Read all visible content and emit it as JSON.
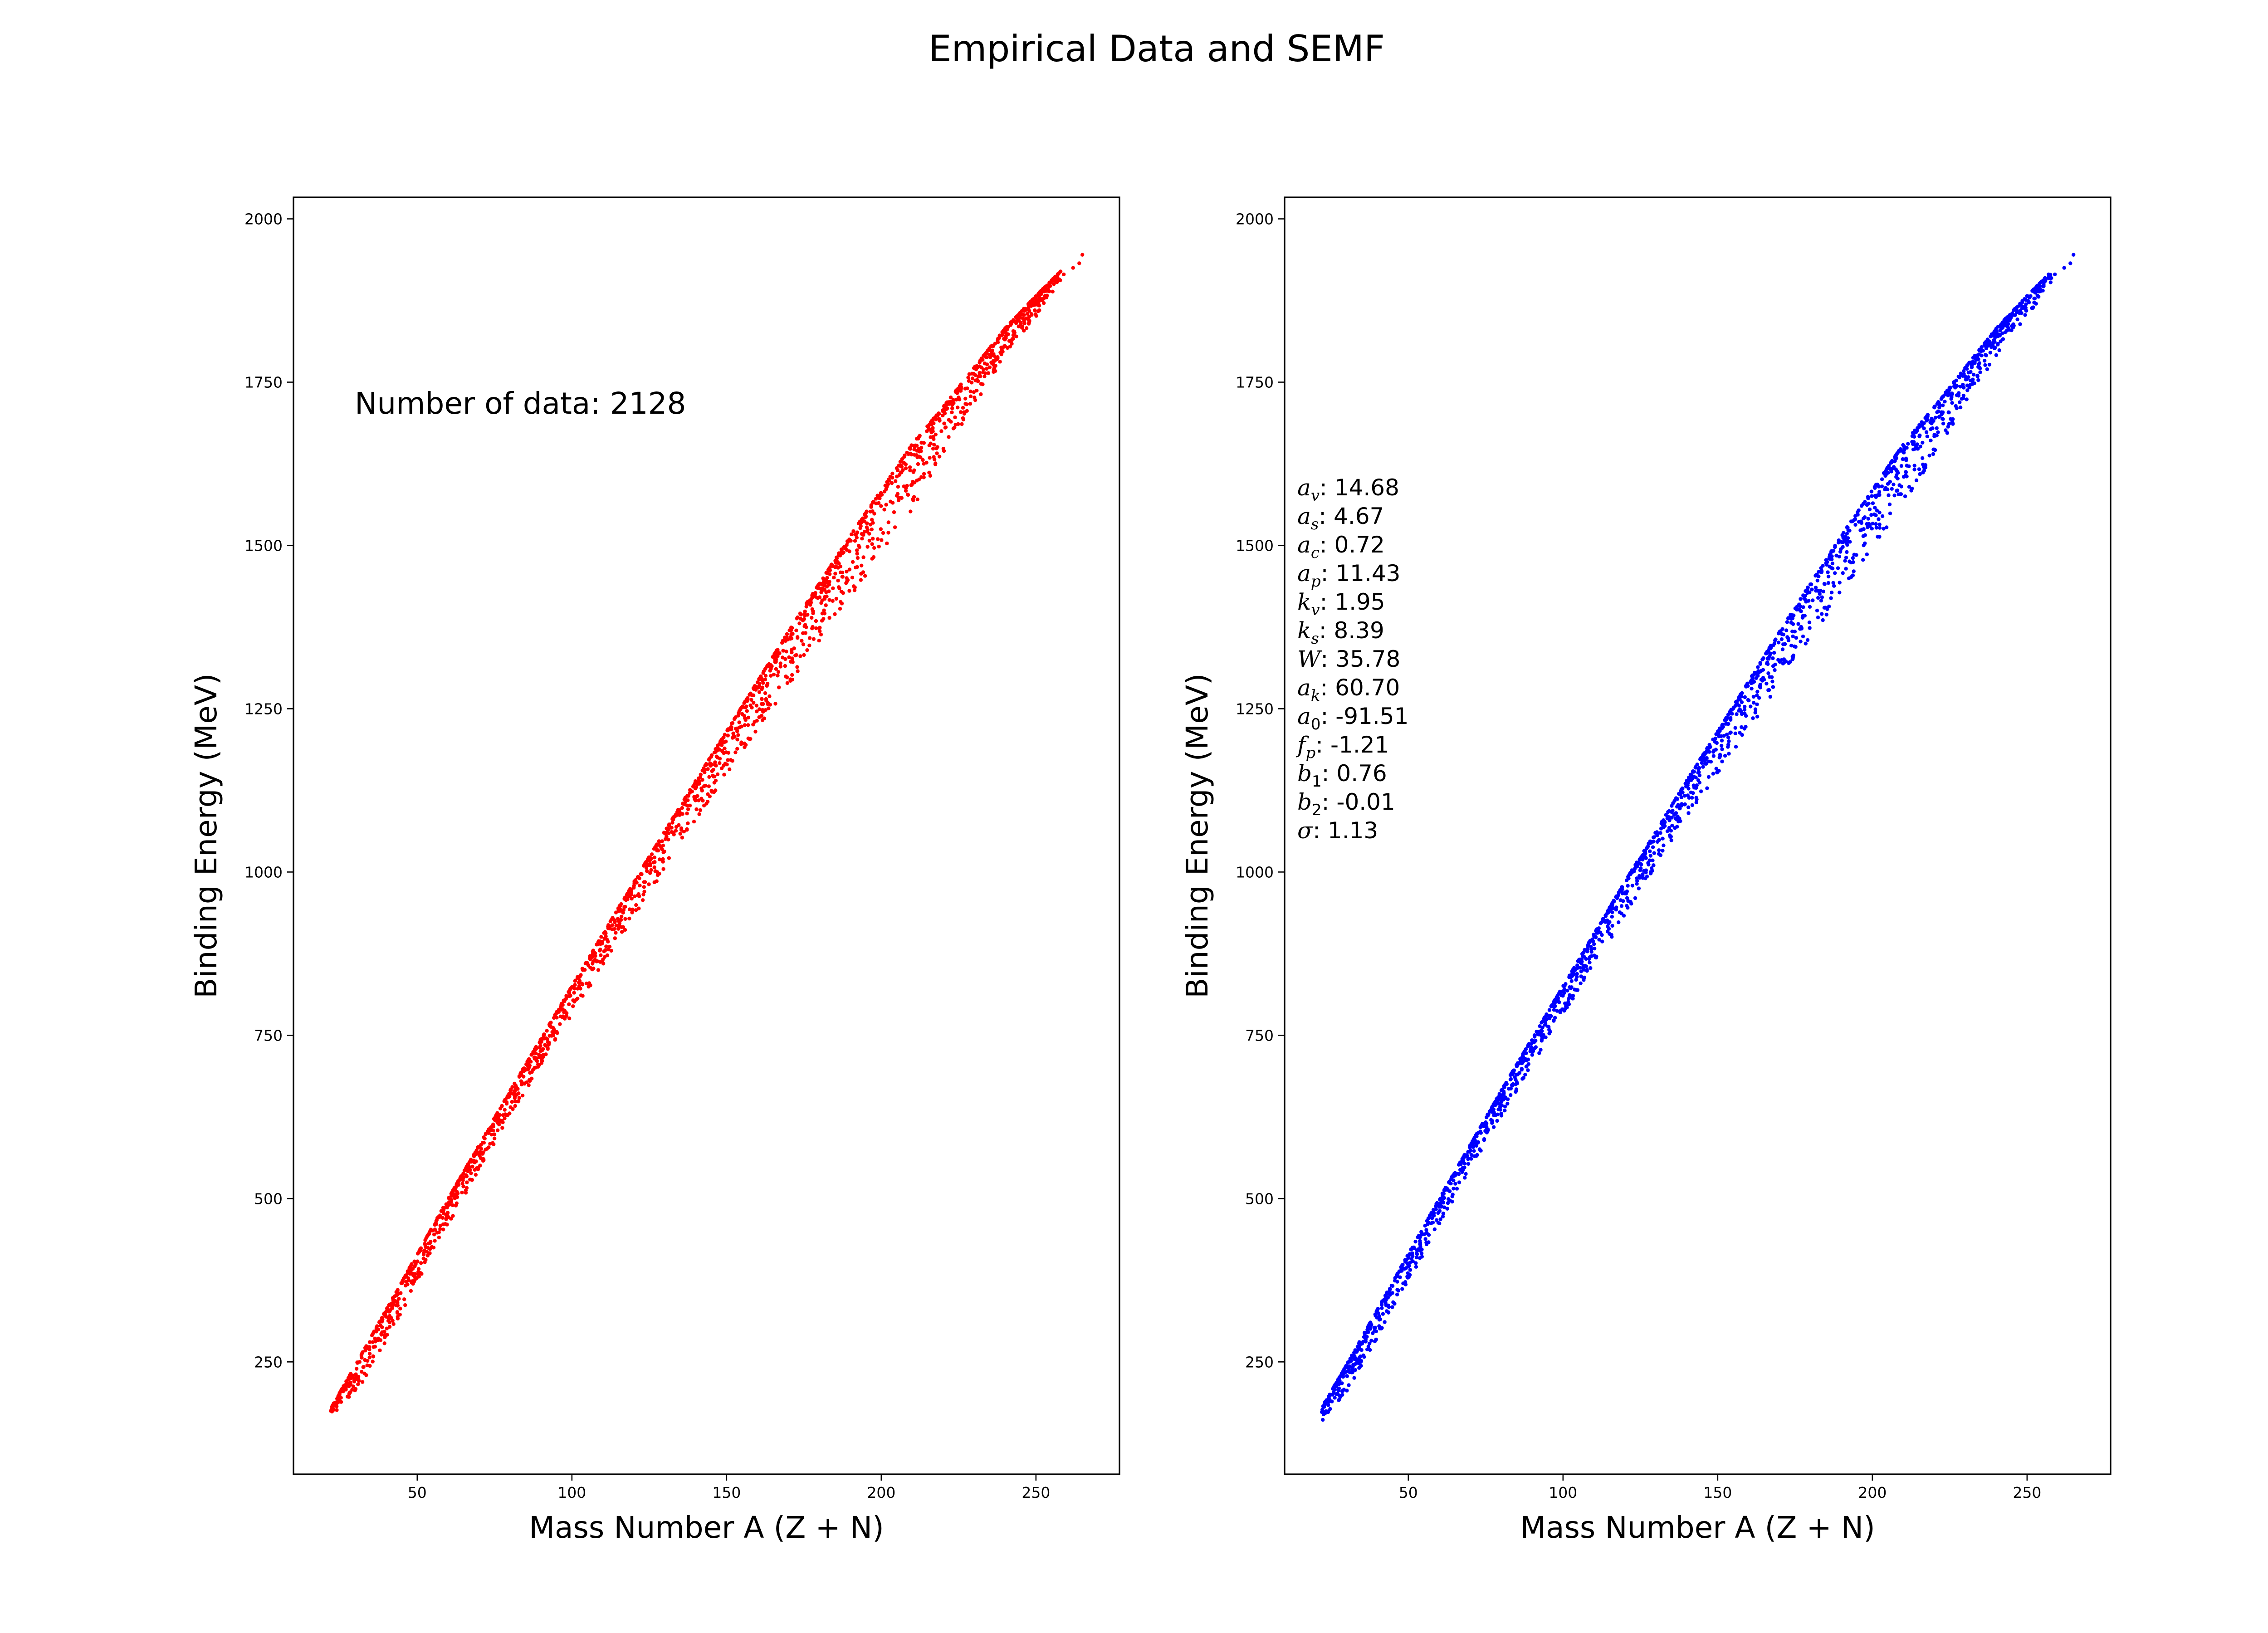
{
  "title": "Empirical Data and SEMF",
  "chart_data": [
    {
      "type": "scatter",
      "panel": "left",
      "color": "#ff0000",
      "xlabel": "Mass Number A (Z + N)",
      "ylabel": "Binding Energy (MeV)",
      "xlim": [
        10,
        277
      ],
      "ylim": [
        78,
        2033
      ],
      "xticks": [
        50,
        100,
        150,
        200,
        250
      ],
      "yticks": [
        250,
        500,
        750,
        1000,
        1250,
        1500,
        1750,
        2000
      ],
      "annotation": "Number of data: 2128",
      "points_description_A_range": [
        22,
        265
      ],
      "band": {
        "A": [
          22,
          30,
          40,
          50,
          60,
          70,
          80,
          90,
          100,
          110,
          120,
          130,
          140,
          150,
          160,
          170,
          180,
          190,
          200,
          210,
          220,
          230,
          240,
          250,
          258,
          265
        ],
        "B_top": [
          178,
          245,
          330,
          415,
          500,
          582,
          665,
          745,
          825,
          905,
          985,
          1062,
          1140,
          1215,
          1292,
          1368,
          1442,
          1515,
          1585,
          1655,
          1712,
          1772,
          1832,
          1882,
          1920,
          1945
        ],
        "B_low": [
          160,
          200,
          280,
          370,
          460,
          545,
          625,
          705,
          780,
          855,
          930,
          1005,
          1080,
          1150,
          1215,
          1285,
          1355,
          1420,
          1490,
          1555,
          1640,
          1715,
          1790,
          1850,
          1905,
          1940
        ]
      }
    },
    {
      "type": "scatter",
      "panel": "right",
      "color": "#0000ff",
      "xlabel": "Mass Number A (Z + N)",
      "ylabel": "Binding Energy (MeV)",
      "xlim": [
        10,
        277
      ],
      "ylim": [
        78,
        2033
      ],
      "xticks": [
        50,
        100,
        150,
        200,
        250
      ],
      "yticks": [
        250,
        500,
        750,
        1000,
        1250,
        1500,
        1750,
        2000
      ],
      "parameters": [
        {
          "sym": "a",
          "sub": "v",
          "value": ": 14.68"
        },
        {
          "sym": "a",
          "sub": "s",
          "value": ": 4.67"
        },
        {
          "sym": "a",
          "sub": "c",
          "value": ": 0.72"
        },
        {
          "sym": "a",
          "sub": "p",
          "value": ": 11.43"
        },
        {
          "sym": "k",
          "sub": "v",
          "value": ": 1.95"
        },
        {
          "sym": "k",
          "sub": "s",
          "value": ": 8.39"
        },
        {
          "sym": "W",
          "sub": "",
          "value": ": 35.78"
        },
        {
          "sym": "a",
          "sub": "k",
          "value": ": 60.70"
        },
        {
          "sym": "a",
          "sub": "0",
          "value": ": -91.51"
        },
        {
          "sym": "f",
          "sub": "p",
          "value": ": -1.21"
        },
        {
          "sym": "b",
          "sub": "1",
          "value": ": 0.76"
        },
        {
          "sym": "b",
          "sub": "2",
          "value": ": -0.01"
        },
        {
          "sym": "σ",
          "sub": "",
          "value": ": 1.13"
        }
      ],
      "band": {
        "A": [
          22,
          30,
          40,
          50,
          60,
          70,
          80,
          90,
          100,
          110,
          120,
          130,
          140,
          150,
          160,
          170,
          180,
          190,
          200,
          210,
          220,
          230,
          240,
          250,
          258,
          265
        ],
        "B_top": [
          180,
          245,
          330,
          415,
          500,
          582,
          665,
          745,
          825,
          905,
          985,
          1062,
          1140,
          1215,
          1292,
          1368,
          1442,
          1515,
          1585,
          1655,
          1712,
          1772,
          1832,
          1882,
          1920,
          1945
        ],
        "B_low": [
          158,
          205,
          285,
          372,
          460,
          545,
          625,
          705,
          782,
          858,
          932,
          1008,
          1082,
          1152,
          1218,
          1288,
          1358,
          1422,
          1492,
          1558,
          1640,
          1715,
          1790,
          1850,
          1905,
          1940
        ]
      }
    }
  ]
}
